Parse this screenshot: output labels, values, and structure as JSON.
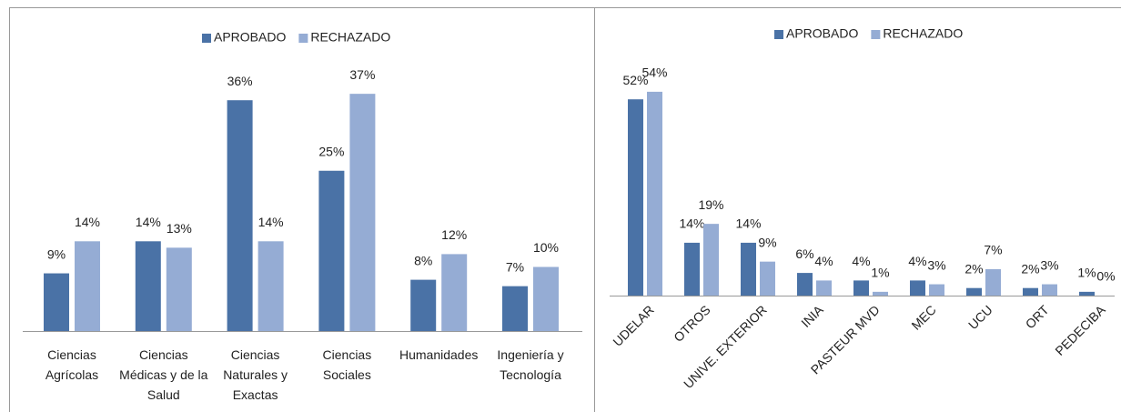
{
  "chart_data": [
    {
      "type": "bar",
      "categories": [
        "Ciencias Agrícolas",
        "Ciencias Médicas y de la Salud",
        "Ciencias Naturales y Exactas",
        "Ciencias Sociales",
        "Humanidades",
        "Ingeniería y Tecnología"
      ],
      "series": [
        {
          "name": "APROBADO",
          "color": "#4a72a6",
          "values": [
            9,
            14,
            36,
            25,
            8,
            7
          ],
          "value_labels": [
            "9%",
            "14%",
            "36%",
            "25%",
            "8%",
            "7%"
          ]
        },
        {
          "name": "RECHAZADO",
          "color": "#95acd4",
          "values": [
            14,
            13,
            14,
            37,
            12,
            10
          ],
          "value_labels": [
            "14%",
            "13%",
            "14%",
            "37%",
            "12%",
            "10%"
          ]
        }
      ],
      "legend": "top"
    },
    {
      "type": "bar",
      "categories": [
        "UDELAR",
        "OTROS",
        "UNIVE. EXTERIOR",
        "INIA",
        "PASTEUR MVD",
        "MEC",
        "UCU",
        "ORT",
        "PEDECIBA"
      ],
      "series": [
        {
          "name": "APROBADO",
          "color": "#4a72a6",
          "values": [
            52,
            14,
            14,
            6,
            4,
            4,
            2,
            2,
            1
          ],
          "value_labels": [
            "52%",
            "14%",
            "14%",
            "6%",
            "4%",
            "4%",
            "2%",
            "2%",
            "1%"
          ]
        },
        {
          "name": "RECHAZADO",
          "color": "#95acd4",
          "values": [
            54,
            19,
            9,
            4,
            1,
            3,
            7,
            3,
            0
          ],
          "value_labels": [
            "54%",
            "19%",
            "9%",
            "4%",
            "1%",
            "3%",
            "7%",
            "3%",
            "0%"
          ]
        }
      ],
      "legend": "top"
    }
  ]
}
